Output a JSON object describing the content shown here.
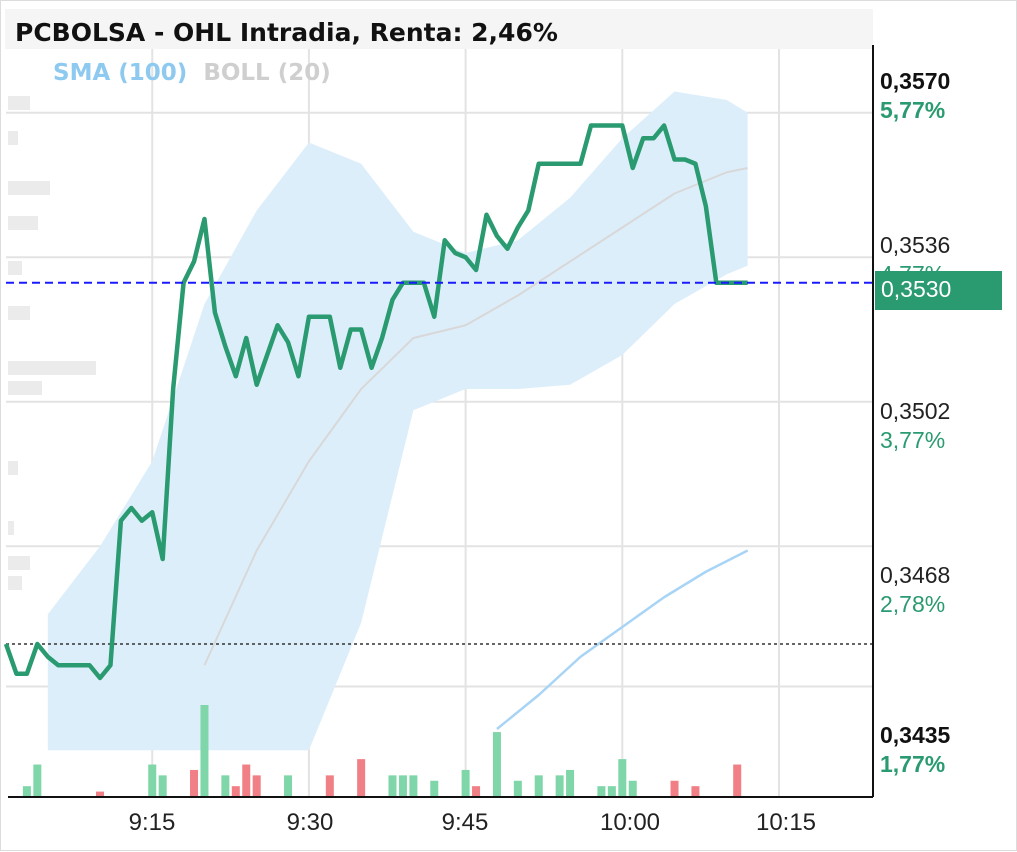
{
  "title": "PCBOLSA - OHL Intradia, Renta: 2,46%",
  "legend": [
    {
      "label": "SMA (100)",
      "color": "#8ec9f0"
    },
    {
      "label": "BOLL (20)",
      "color": "#cfcfcf"
    }
  ],
  "colors": {
    "price_line": "#2a9a70",
    "band_fill": "#ddeefb",
    "sma_line": "#a8d4f5",
    "boll_mid": "#d8d8d8",
    "current_line": "#1a1aff",
    "vol_up": "#7fd6a8",
    "vol_down": "#f07f86",
    "reference_line": "#333333"
  },
  "y_axis": {
    "labels": [
      {
        "price": "0,3570",
        "pct": "5,77%",
        "bold": true
      },
      {
        "price": "0,3536",
        "pct": "4,77%",
        "bold": false
      },
      {
        "price": "0,3502",
        "pct": "3,77%",
        "bold": false
      },
      {
        "price": "0,3468",
        "pct": "2,78%",
        "bold": false
      },
      {
        "price": "0,3435",
        "pct": "1,77%",
        "bold": true
      }
    ]
  },
  "current_price_label": "0,3530",
  "x_axis": {
    "labels": [
      "9:15",
      "9:30",
      "9:45",
      "10:00",
      "10:15"
    ]
  },
  "chart_data": {
    "type": "line",
    "title": "PCBOLSA - OHL Intradia, Renta: 2,46%",
    "xlabel": "",
    "ylabel": "",
    "x_range": [
      "9:01",
      "10:24"
    ],
    "ylim": [
      0.3409,
      0.3585
    ],
    "current_price": 0.353,
    "reference_price": 0.3445,
    "series": [
      {
        "name": "OHL",
        "x": [
          "9:01",
          "9:02",
          "9:03",
          "9:04",
          "9:05",
          "9:06",
          "9:07",
          "9:08",
          "9:09",
          "9:10",
          "9:11",
          "9:12",
          "9:13",
          "9:14",
          "9:15",
          "9:16",
          "9:17",
          "9:18",
          "9:19",
          "9:20",
          "9:21",
          "9:22",
          "9:23",
          "9:24",
          "9:25",
          "9:26",
          "9:27",
          "9:28",
          "9:29",
          "9:30",
          "9:31",
          "9:32",
          "9:33",
          "9:34",
          "9:35",
          "9:36",
          "9:37",
          "9:38",
          "9:39",
          "9:40",
          "9:41",
          "9:42",
          "9:43",
          "9:44",
          "9:45",
          "9:46",
          "9:47",
          "9:48",
          "9:49",
          "9:50",
          "9:51",
          "9:52",
          "9:53",
          "9:54",
          "9:55",
          "9:56",
          "9:57",
          "9:58",
          "9:59",
          "10:00",
          "10:01",
          "10:02",
          "10:03",
          "10:04",
          "10:05",
          "10:06",
          "10:07",
          "10:08",
          "10:09",
          "10:10",
          "10:11",
          "10:12"
        ],
        "values": [
          0.3445,
          0.3438,
          0.3438,
          0.3445,
          0.3442,
          0.344,
          0.344,
          0.344,
          0.344,
          0.3437,
          0.344,
          0.3474,
          0.3477,
          0.3474,
          0.3476,
          0.3465,
          0.3505,
          0.353,
          0.3535,
          0.3545,
          0.3523,
          0.3515,
          0.3508,
          0.3517,
          0.3506,
          0.3513,
          0.352,
          0.3516,
          0.3508,
          0.3522,
          0.3522,
          0.3522,
          0.351,
          0.3519,
          0.3519,
          0.351,
          0.3517,
          0.3526,
          0.353,
          0.353,
          0.353,
          0.3522,
          0.354,
          0.3537,
          0.3536,
          0.3533,
          0.3546,
          0.3541,
          0.3538,
          0.3543,
          0.3547,
          0.3558,
          0.3558,
          0.3558,
          0.3558,
          0.3558,
          0.3567,
          0.3567,
          0.3567,
          0.3567,
          0.3557,
          0.3564,
          0.3564,
          0.3567,
          0.3559,
          0.3559,
          0.3558,
          0.3548,
          0.353,
          0.353,
          0.353,
          0.353
        ]
      },
      {
        "name": "SMA (100)",
        "x": [
          "9:48",
          "9:52",
          "9:56",
          "10:00",
          "10:04",
          "10:08",
          "10:12"
        ],
        "values": [
          0.3425,
          0.3433,
          0.3442,
          0.3449,
          0.3456,
          0.3462,
          0.3467
        ]
      },
      {
        "name": "BOLL (20) upper",
        "x": [
          "9:05",
          "9:10",
          "9:15",
          "9:20",
          "9:25",
          "9:30",
          "9:35",
          "9:40",
          "9:45",
          "9:50",
          "9:55",
          "10:00",
          "10:05",
          "10:10",
          "10:12"
        ],
        "values": [
          0.3452,
          0.3468,
          0.3488,
          0.3525,
          0.3547,
          0.3563,
          0.3558,
          0.3542,
          0.3537,
          0.354,
          0.355,
          0.3564,
          0.3575,
          0.3573,
          0.357
        ]
      },
      {
        "name": "BOLL (20) lower",
        "x": [
          "9:05",
          "9:10",
          "9:15",
          "9:20",
          "9:25",
          "9:30",
          "9:35",
          "9:40",
          "9:45",
          "9:50",
          "9:55",
          "10:00",
          "10:05",
          "10:10",
          "10:12"
        ],
        "values": [
          0.342,
          0.342,
          0.342,
          0.342,
          0.342,
          0.342,
          0.345,
          0.35,
          0.3505,
          0.3505,
          0.3506,
          0.3513,
          0.3525,
          0.3532,
          0.3534
        ]
      },
      {
        "name": "BOLL (20) middle",
        "x": [
          "9:20",
          "9:25",
          "9:30",
          "9:35",
          "9:40",
          "9:45",
          "9:50",
          "9:55",
          "10:00",
          "10:05",
          "10:10",
          "10:12"
        ],
        "values": [
          0.344,
          0.3467,
          0.3488,
          0.3505,
          0.3517,
          0.352,
          0.3527,
          0.3535,
          0.3543,
          0.3551,
          0.3556,
          0.3557
        ]
      }
    ],
    "volume": {
      "x": [
        "9:03",
        "9:04",
        "9:10",
        "9:15",
        "9:16",
        "9:19",
        "9:20",
        "9:22",
        "9:23",
        "9:24",
        "9:25",
        "9:28",
        "9:32",
        "9:35",
        "9:38",
        "9:39",
        "9:40",
        "9:42",
        "9:45",
        "9:46",
        "9:48",
        "9:50",
        "9:52",
        "9:54",
        "9:55",
        "9:58",
        "9:59",
        "10:00",
        "10:01",
        "10:05",
        "10:07",
        "10:11"
      ],
      "values": [
        2,
        6,
        1,
        6,
        4,
        5,
        17,
        4,
        2,
        6,
        4,
        4,
        4,
        7,
        4,
        4,
        4,
        3,
        5,
        2,
        12,
        3,
        4,
        4,
        5,
        2,
        2,
        7,
        3,
        3,
        2,
        6
      ],
      "up": [
        true,
        true,
        false,
        true,
        true,
        false,
        true,
        true,
        false,
        false,
        false,
        true,
        false,
        false,
        true,
        true,
        true,
        true,
        true,
        false,
        true,
        true,
        true,
        true,
        true,
        true,
        true,
        true,
        true,
        false,
        false,
        false
      ]
    },
    "grid": true
  }
}
